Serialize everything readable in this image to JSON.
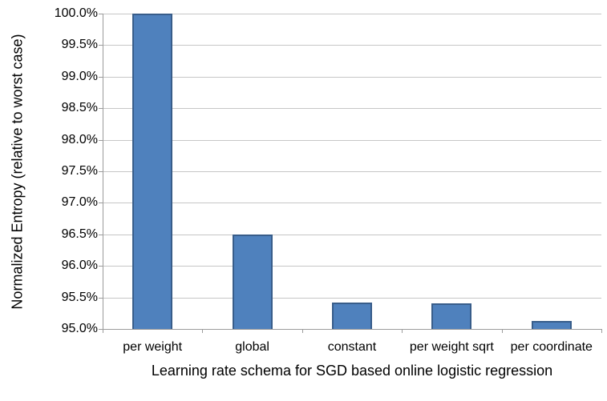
{
  "chart_data": {
    "type": "bar",
    "title": "",
    "xlabel": "Learning rate schema for SGD based online logistic regression",
    "ylabel": "Normalized Entropy (relative to worst case)",
    "categories": [
      "per weight",
      "global",
      "constant",
      "per weight sqrt",
      "per coordinate"
    ],
    "values": [
      100.0,
      96.5,
      95.42,
      95.41,
      95.13
    ],
    "ylim": [
      95.0,
      100.0
    ],
    "ytick_step": 0.5,
    "ytick_labels": [
      "95.0%",
      "95.5%",
      "96.0%",
      "96.5%",
      "97.0%",
      "97.5%",
      "98.0%",
      "98.5%",
      "99.0%",
      "99.5%",
      "100.0%"
    ],
    "ytick_format": "percent_one_decimal",
    "grid": "horizontal",
    "legend": "none",
    "colors": {
      "bar_fill": "#4F81BD",
      "bar_border": "#385D8A",
      "gridline": "#C6C6C6",
      "axis_line": "#9B9B9B",
      "text": "#000000",
      "background": "#FFFFFF"
    }
  }
}
